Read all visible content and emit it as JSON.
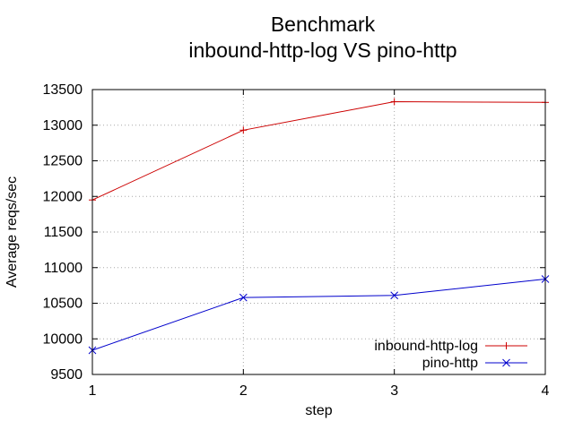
{
  "chart_data": {
    "type": "line",
    "title": [
      "Benchmark",
      "inbound-http-log VS pino-http"
    ],
    "xlabel": "step",
    "ylabel": "Average reqs/sec",
    "x": [
      1,
      2,
      3,
      4
    ],
    "series": [
      {
        "name": "inbound-http-log",
        "color": "#cc0000",
        "marker": "plus",
        "values": [
          11950,
          12930,
          13330,
          13320
        ]
      },
      {
        "name": "pino-http",
        "color": "#0000cc",
        "marker": "cross",
        "values": [
          9840,
          10580,
          10610,
          10840
        ]
      }
    ],
    "xlim": [
      1,
      4
    ],
    "ylim": [
      9500,
      13500
    ],
    "xticks": [
      1,
      2,
      3,
      4
    ],
    "yticks": [
      9500,
      10000,
      10500,
      11000,
      11500,
      12000,
      12500,
      13000,
      13500
    ],
    "grid": true,
    "grid_color": "#a8a8a8",
    "axis_color": "#000000",
    "text_color": "#000000",
    "background": "#ffffff",
    "legend_position": "bottom-right"
  }
}
